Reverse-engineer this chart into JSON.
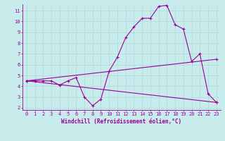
{
  "xlabel": "Windchill (Refroidissement éolien,°C)",
  "background_color": "#c8ecec",
  "line_color": "#990099",
  "grid_color": "#b0d8d8",
  "xlim": [
    -0.5,
    23.5
  ],
  "ylim": [
    1.8,
    11.6
  ],
  "xticks": [
    0,
    1,
    2,
    3,
    4,
    5,
    6,
    7,
    8,
    9,
    10,
    11,
    12,
    13,
    14,
    15,
    16,
    17,
    18,
    19,
    20,
    21,
    22,
    23
  ],
  "yticks": [
    2,
    3,
    4,
    5,
    6,
    7,
    8,
    9,
    10,
    11
  ],
  "line1_x": [
    0,
    1,
    2,
    3,
    4,
    5,
    6,
    7,
    8,
    9,
    10,
    11,
    12,
    13,
    14,
    15,
    16,
    17,
    18,
    19,
    20,
    21,
    22,
    23
  ],
  "line1_y": [
    4.5,
    4.5,
    4.5,
    4.5,
    4.1,
    4.5,
    4.8,
    3.0,
    2.2,
    2.8,
    5.4,
    6.7,
    8.5,
    9.5,
    10.3,
    10.3,
    11.4,
    11.5,
    9.7,
    9.3,
    6.3,
    7.0,
    3.3,
    2.5
  ],
  "line2_x": [
    0,
    23
  ],
  "line2_y": [
    4.5,
    6.5
  ],
  "line3_x": [
    0,
    23
  ],
  "line3_y": [
    4.5,
    2.5
  ],
  "xlabel_fontsize": 5.5,
  "tick_fontsize": 5
}
